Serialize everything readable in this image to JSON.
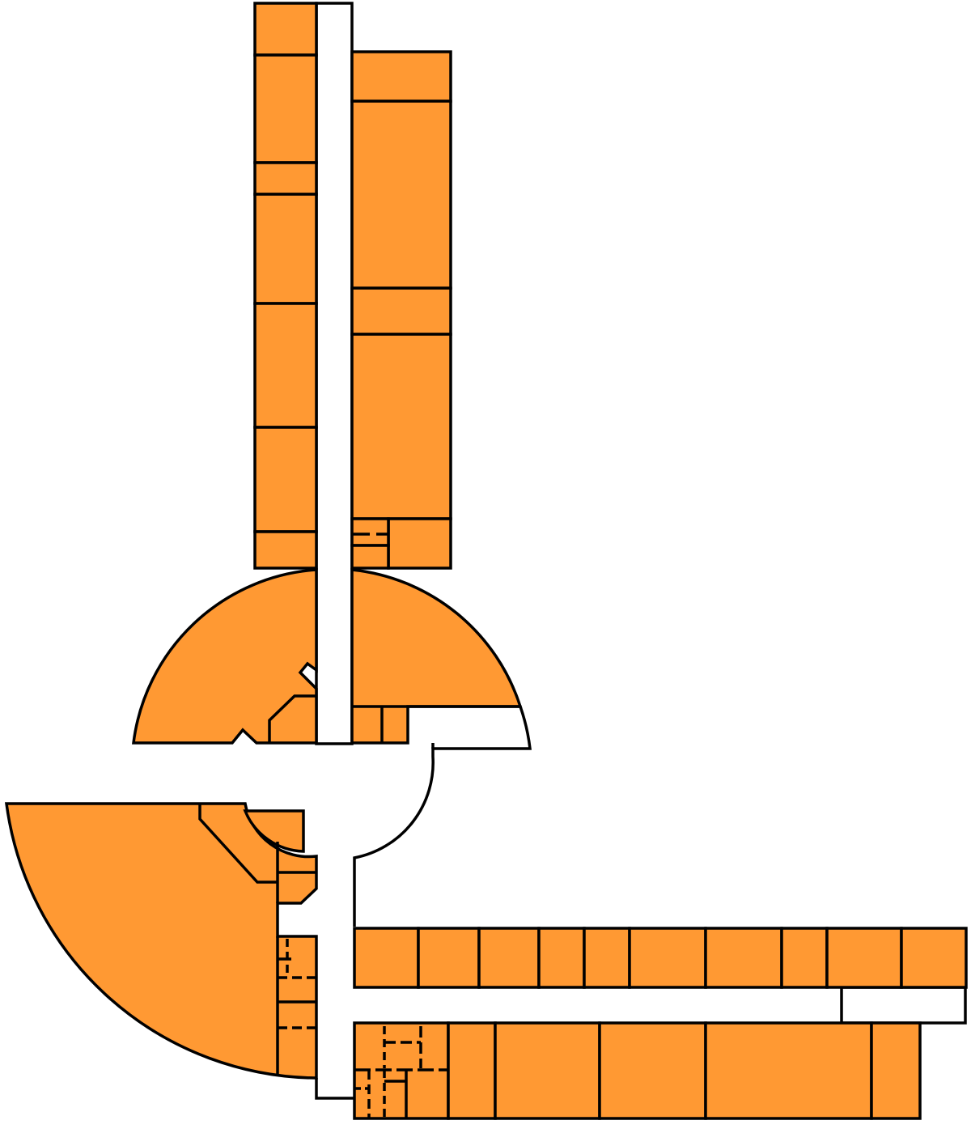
{
  "colors": {
    "room_fill": "#FF9933",
    "wall_stroke": "#000000",
    "corridor_fill": "#FFFFFF",
    "background": "#FFFFFF"
  },
  "floor_plan": {
    "wings": [
      {
        "id": "north-west-column"
      },
      {
        "id": "north-east-column"
      },
      {
        "id": "central-semicircle-west"
      },
      {
        "id": "central-semicircle-east"
      },
      {
        "id": "south-west-quarter-circle"
      },
      {
        "id": "south-east-upper-row"
      },
      {
        "id": "south-east-lower-row"
      }
    ]
  }
}
